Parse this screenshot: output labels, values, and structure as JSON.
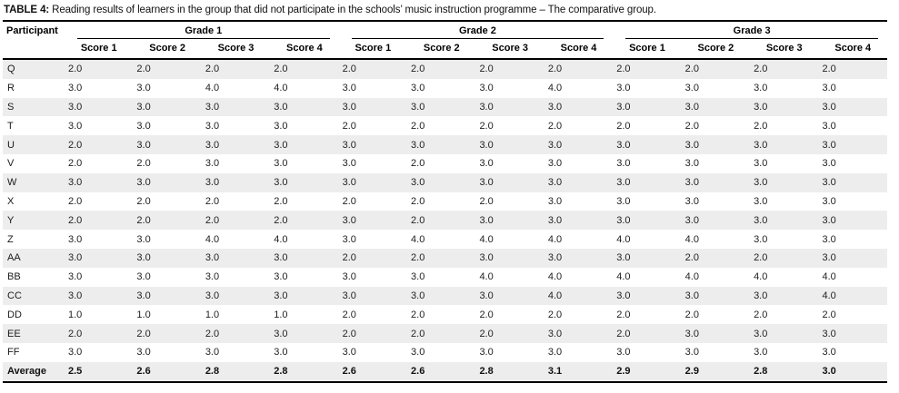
{
  "title": {
    "label": "TABLE 4:",
    "caption": "Reading results of learners in the group that did not participate in the schools’ music instruction programme – The comparative group."
  },
  "colors": {
    "row_stripe": "#ededed",
    "rule": "#000000",
    "text": "#1c1c1c",
    "background": "#ffffff"
  },
  "table": {
    "participant_header": "Participant",
    "grade_headers": [
      "Grade 1",
      "Grade 2",
      "Grade 3"
    ],
    "score_headers": [
      "Score 1",
      "Score 2",
      "Score 3",
      "Score 4"
    ],
    "rows": [
      {
        "participant": "Q",
        "scores": [
          "2.0",
          "2.0",
          "2.0",
          "2.0",
          "2.0",
          "2.0",
          "2.0",
          "2.0",
          "2.0",
          "2.0",
          "2.0",
          "2.0"
        ]
      },
      {
        "participant": "R",
        "scores": [
          "3.0",
          "3.0",
          "4.0",
          "4.0",
          "3.0",
          "3.0",
          "3.0",
          "4.0",
          "3.0",
          "3.0",
          "3.0",
          "3.0"
        ]
      },
      {
        "participant": "S",
        "scores": [
          "3.0",
          "3.0",
          "3.0",
          "3.0",
          "3.0",
          "3.0",
          "3.0",
          "3.0",
          "3.0",
          "3.0",
          "3.0",
          "3.0"
        ]
      },
      {
        "participant": "T",
        "scores": [
          "3.0",
          "3.0",
          "3.0",
          "3.0",
          "2.0",
          "2.0",
          "2.0",
          "2.0",
          "2.0",
          "2.0",
          "2.0",
          "3.0"
        ]
      },
      {
        "participant": "U",
        "scores": [
          "2.0",
          "3.0",
          "3.0",
          "3.0",
          "3.0",
          "3.0",
          "3.0",
          "3.0",
          "3.0",
          "3.0",
          "3.0",
          "3.0"
        ]
      },
      {
        "participant": "V",
        "scores": [
          "2.0",
          "2.0",
          "3.0",
          "3.0",
          "3.0",
          "2.0",
          "3.0",
          "3.0",
          "3.0",
          "3.0",
          "3.0",
          "3.0"
        ]
      },
      {
        "participant": "W",
        "scores": [
          "3.0",
          "3.0",
          "3.0",
          "3.0",
          "3.0",
          "3.0",
          "3.0",
          "3.0",
          "3.0",
          "3.0",
          "3.0",
          "3.0"
        ]
      },
      {
        "participant": "X",
        "scores": [
          "2.0",
          "2.0",
          "2.0",
          "2.0",
          "2.0",
          "2.0",
          "2.0",
          "3.0",
          "3.0",
          "3.0",
          "3.0",
          "3.0"
        ]
      },
      {
        "participant": "Y",
        "scores": [
          "2.0",
          "2.0",
          "2.0",
          "2.0",
          "3.0",
          "2.0",
          "3.0",
          "3.0",
          "3.0",
          "3.0",
          "3.0",
          "3.0"
        ]
      },
      {
        "participant": "Z",
        "scores": [
          "3.0",
          "3.0",
          "4.0",
          "4.0",
          "3.0",
          "4.0",
          "4.0",
          "4.0",
          "4.0",
          "4.0",
          "3.0",
          "3.0"
        ]
      },
      {
        "participant": "AA",
        "scores": [
          "3.0",
          "3.0",
          "3.0",
          "3.0",
          "2.0",
          "2.0",
          "3.0",
          "3.0",
          "3.0",
          "2.0",
          "2.0",
          "3.0"
        ]
      },
      {
        "participant": "BB",
        "scores": [
          "3.0",
          "3.0",
          "3.0",
          "3.0",
          "3.0",
          "3.0",
          "4.0",
          "4.0",
          "4.0",
          "4.0",
          "4.0",
          "4.0"
        ]
      },
      {
        "participant": "CC",
        "scores": [
          "3.0",
          "3.0",
          "3.0",
          "3.0",
          "3.0",
          "3.0",
          "3.0",
          "4.0",
          "3.0",
          "3.0",
          "3.0",
          "4.0"
        ]
      },
      {
        "participant": "DD",
        "scores": [
          "1.0",
          "1.0",
          "1.0",
          "1.0",
          "2.0",
          "2.0",
          "2.0",
          "2.0",
          "2.0",
          "2.0",
          "2.0",
          "2.0"
        ]
      },
      {
        "participant": "EE",
        "scores": [
          "2.0",
          "2.0",
          "2.0",
          "3.0",
          "2.0",
          "2.0",
          "2.0",
          "3.0",
          "2.0",
          "3.0",
          "3.0",
          "3.0"
        ]
      },
      {
        "participant": "FF",
        "scores": [
          "3.0",
          "3.0",
          "3.0",
          "3.0",
          "3.0",
          "3.0",
          "3.0",
          "3.0",
          "3.0",
          "3.0",
          "3.0",
          "3.0"
        ]
      }
    ],
    "average": {
      "participant": "Average",
      "scores": [
        "2.5",
        "2.6",
        "2.8",
        "2.8",
        "2.6",
        "2.6",
        "2.8",
        "3.1",
        "2.9",
        "2.9",
        "2.8",
        "3.0"
      ]
    }
  }
}
